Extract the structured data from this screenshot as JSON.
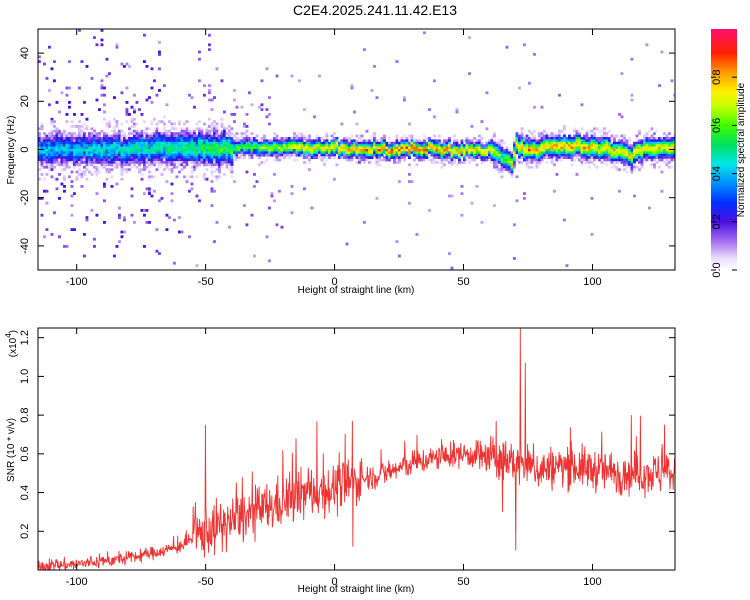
{
  "title": "C2E4.2025.241.11.42.E13",
  "chart_data": [
    {
      "type": "heatmap",
      "name": "spectrogram",
      "xlabel": "Height of straight line (km)",
      "ylabel": "Frequency (Hz)",
      "xlim": [
        -115,
        132
      ],
      "ylim": [
        -50,
        50
      ],
      "xticks": [
        -100,
        -50,
        0,
        50,
        100
      ],
      "yticks": [
        -40,
        -20,
        0,
        20,
        40
      ],
      "colorbar": {
        "label": "Normalized spectral amplitude",
        "range": [
          0,
          1
        ],
        "ticks": [
          "0.0",
          "0.2",
          "0.4",
          "0.6",
          "0.8"
        ]
      },
      "ridge_center_freq_hz": {
        "x": [
          -115,
          -100,
          -80,
          -60,
          -40,
          -20,
          0,
          20,
          40,
          60,
          65,
          68,
          70,
          75,
          80,
          90,
          100,
          110,
          115,
          120,
          132
        ],
        "y": [
          0,
          0.5,
          0.5,
          1,
          1,
          1.5,
          1,
          0.5,
          0.5,
          0,
          -3,
          -5,
          2,
          0,
          1,
          2,
          1,
          0,
          -2,
          1,
          1
        ]
      },
      "ridge_peak_amplitude": {
        "x": [
          -115,
          -80,
          -50,
          -30,
          -15,
          10,
          30,
          60,
          65,
          70,
          90,
          110,
          132
        ],
        "y": [
          0.4,
          0.45,
          0.55,
          0.6,
          0.75,
          0.8,
          0.85,
          0.75,
          0.55,
          0.8,
          0.8,
          0.75,
          0.75
        ]
      }
    },
    {
      "type": "line",
      "name": "snr",
      "series": [
        {
          "name": "SNR",
          "color": "#ee3333"
        }
      ],
      "xlabel": "Height of straight line (km)",
      "ylabel": "SNR (10 * v/v)",
      "multiplier_prefix": "(x10",
      "multiplier_exponent": "4",
      "multiplier_suffix": ")",
      "xlim": [
        -115,
        132
      ],
      "ylim": [
        0,
        1.25
      ],
      "xticks": [
        -100,
        -50,
        0,
        50,
        100
      ],
      "yticks": [
        "0.2",
        "0.4",
        "0.6",
        "0.8",
        "1.0",
        "1.2"
      ],
      "envelope": {
        "x": [
          -115,
          -100,
          -80,
          -60,
          -50,
          -40,
          -30,
          -20,
          -10,
          0,
          10,
          20,
          30,
          40,
          50,
          60,
          70,
          80,
          90,
          100,
          110,
          120,
          132
        ],
        "y": [
          0.02,
          0.03,
          0.06,
          0.12,
          0.2,
          0.25,
          0.3,
          0.35,
          0.4,
          0.42,
          0.47,
          0.5,
          0.55,
          0.58,
          0.6,
          0.58,
          0.55,
          0.52,
          0.54,
          0.52,
          0.5,
          0.5,
          0.5
        ]
      },
      "spikes": [
        {
          "x": -50,
          "y": 0.75
        },
        {
          "x": -20,
          "y": 0.62
        },
        {
          "x": -15,
          "y": 0.68
        },
        {
          "x": 7,
          "y": 0.77
        },
        {
          "x": 72,
          "y": 1.25
        },
        {
          "x": 74,
          "y": 1.07
        },
        {
          "x": 115,
          "y": 0.8
        },
        {
          "x": 128,
          "y": 0.75
        }
      ],
      "dips": [
        {
          "x": 7,
          "y": 0.12
        },
        {
          "x": 70,
          "y": 0.1
        },
        {
          "x": 65,
          "y": 0.3
        }
      ]
    }
  ]
}
